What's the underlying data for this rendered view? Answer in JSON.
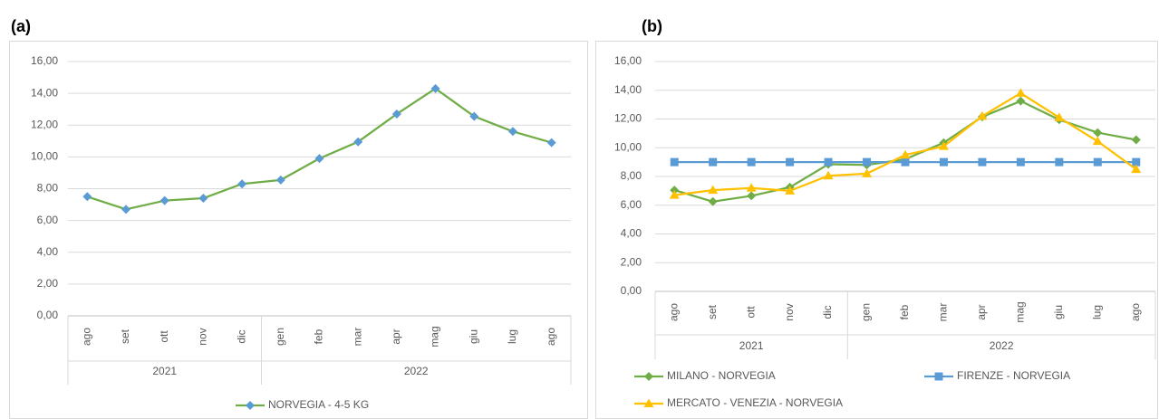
{
  "chart_data": [
    {
      "type": "line",
      "label": "(a)",
      "categories": [
        "ago",
        "set",
        "ott",
        "nov",
        "dic",
        "gen",
        "feb",
        "mar",
        "apr",
        "mag",
        "giu",
        "lug",
        "ago"
      ],
      "x_groups": [
        {
          "label": "2021",
          "count": 5
        },
        {
          "label": "2022",
          "count": 8
        }
      ],
      "series": [
        {
          "name": "NORVEGIA - 4-5 KG",
          "color": "#70ad47",
          "marker_color": "#5b9bd5",
          "marker": "diamond",
          "values": [
            7.5,
            6.7,
            7.25,
            7.4,
            8.3,
            8.55,
            9.9,
            10.95,
            12.7,
            14.3,
            12.55,
            11.6,
            10.9
          ]
        }
      ],
      "ylim": [
        0,
        16
      ],
      "yticks": [
        {
          "value": 0,
          "label": "0,00"
        },
        {
          "value": 2,
          "label": "2,00"
        },
        {
          "value": 4,
          "label": "4,00"
        },
        {
          "value": 6,
          "label": "6,00"
        },
        {
          "value": 8,
          "label": "8,00"
        },
        {
          "value": 10,
          "label": "10,00"
        },
        {
          "value": 12,
          "label": "12,00"
        },
        {
          "value": 14,
          "label": "14,00"
        },
        {
          "value": 16,
          "label": "16,00"
        }
      ],
      "grid": true
    },
    {
      "type": "line",
      "label": "(b)",
      "categories": [
        "ago",
        "set",
        "ott",
        "nov",
        "dic",
        "gen",
        "feb",
        "mar",
        "apr",
        "mag",
        "giu",
        "lug",
        "ago"
      ],
      "x_groups": [
        {
          "label": "2021",
          "count": 5
        },
        {
          "label": "2022",
          "count": 8
        }
      ],
      "series": [
        {
          "name": "MILANO - NORVEGIA",
          "color": "#70ad47",
          "marker_color": "#70ad47",
          "marker": "diamond",
          "values": [
            7.05,
            6.25,
            6.65,
            7.25,
            8.85,
            8.8,
            9.2,
            10.35,
            12.15,
            13.25,
            11.95,
            11.05,
            10.55
          ]
        },
        {
          "name": "FIRENZE - NORVEGIA",
          "color": "#5b9bd5",
          "marker_color": "#5b9bd5",
          "marker": "square",
          "values": [
            9,
            9,
            9,
            9,
            9,
            9,
            9,
            9,
            9,
            9,
            9,
            9,
            9
          ]
        },
        {
          "name": "MERCATO - VENEZIA - NORVEGIA",
          "color": "#ffc000",
          "marker_color": "#ffc000",
          "marker": "triangle",
          "values": [
            6.7,
            7.05,
            7.2,
            7.0,
            8.05,
            8.2,
            9.5,
            10.1,
            12.2,
            13.8,
            12.1,
            10.45,
            8.5
          ]
        }
      ],
      "ylim": [
        0,
        16
      ],
      "yticks": [
        {
          "value": 0,
          "label": "0,00"
        },
        {
          "value": 2,
          "label": "2,00"
        },
        {
          "value": 4,
          "label": "4,00"
        },
        {
          "value": 6,
          "label": "6,00"
        },
        {
          "value": 8,
          "label": "8,00"
        },
        {
          "value": 10,
          "label": "10,00"
        },
        {
          "value": 12,
          "label": "12,00"
        },
        {
          "value": 14,
          "label": "14,00"
        },
        {
          "value": 16,
          "label": "16,00"
        }
      ],
      "grid": true
    }
  ]
}
